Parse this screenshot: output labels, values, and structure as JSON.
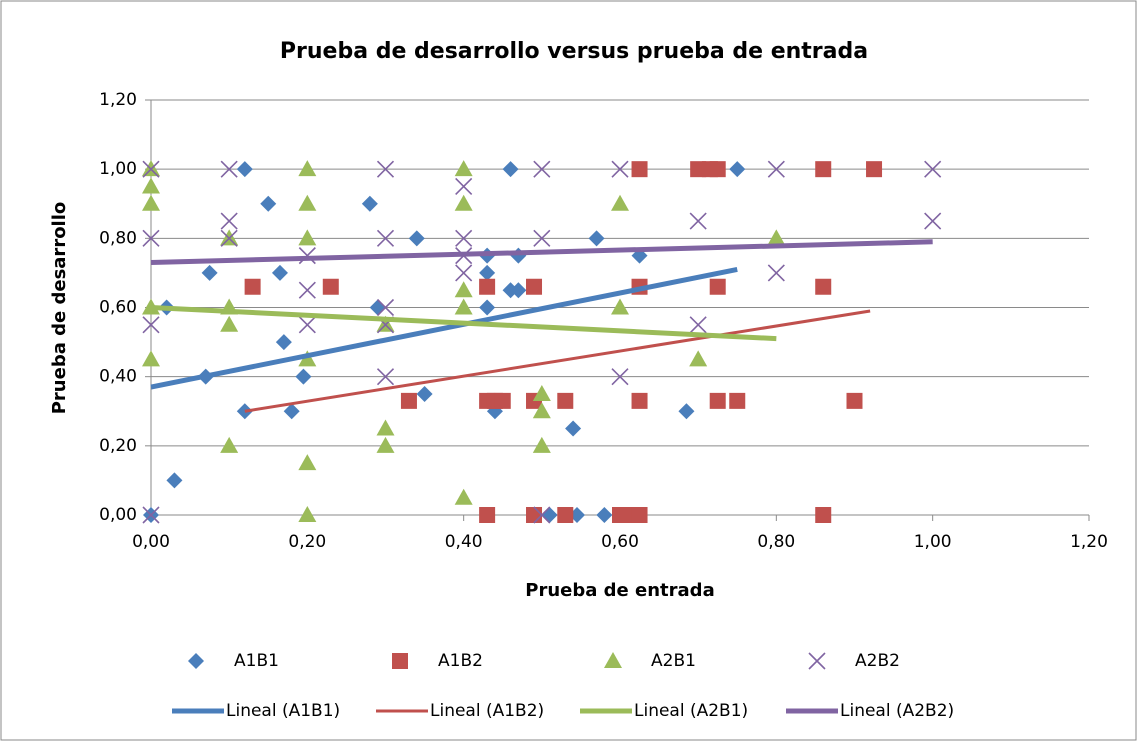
{
  "chart_data": {
    "type": "scatter",
    "title": "Prueba de desarrollo versus prueba de entrada",
    "x_label": "Prueba de entrada",
    "y_label": "Prueba de desarrollo",
    "xlim": [
      0,
      1.2
    ],
    "ylim": [
      0,
      1.2
    ],
    "xticks": [
      {
        "value": 0,
        "label": "0,00"
      },
      {
        "value": 0.2,
        "label": "0,20"
      },
      {
        "value": 0.4,
        "label": "0,40"
      },
      {
        "value": 0.6,
        "label": "0,60"
      },
      {
        "value": 0.8,
        "label": "0,80"
      },
      {
        "value": 1,
        "label": "1,00"
      },
      {
        "value": 1.2,
        "label": "1,20"
      }
    ],
    "yticks": [
      {
        "value": 0,
        "label": "0,00"
      },
      {
        "value": 0.2,
        "label": "0,20"
      },
      {
        "value": 0.4,
        "label": "0,40"
      },
      {
        "value": 0.6,
        "label": "0,60"
      },
      {
        "value": 0.8,
        "label": "0,80"
      },
      {
        "value": 1,
        "label": "1,00"
      },
      {
        "value": 1.2,
        "label": "1,20"
      }
    ],
    "grid": true,
    "legend": "bottom",
    "series": [
      {
        "name": "A1B1",
        "color": "#4a7ebb",
        "marker": "diamond",
        "x": [
          0,
          0.03,
          0.07,
          0.075,
          0.12,
          0.12,
          0.15,
          0.165,
          0.17,
          0.18,
          0.195,
          0.28,
          0.29,
          0.34,
          0.35,
          0.43,
          0.43,
          0.43,
          0.44,
          0.46,
          0.47,
          0.47,
          0.46,
          0.02,
          0.51,
          0.54,
          0.545,
          0.57,
          0.58,
          0.625,
          0.685,
          0.75
        ],
        "values": [
          0,
          0.1,
          0.4,
          0.7,
          0.3,
          1,
          0.9,
          0.7,
          0.5,
          0.3,
          0.4,
          0.9,
          0.6,
          0.8,
          0.35,
          0.75,
          0.7,
          0.6,
          0.3,
          0.65,
          0.65,
          0.75,
          1,
          0.6,
          0,
          0.25,
          0,
          0.8,
          0,
          0.75,
          0.3,
          1
        ]
      },
      {
        "name": "A1B2",
        "color": "#c0504d",
        "marker": "square",
        "x": [
          0.13,
          0.23,
          0.33,
          0.43,
          0.43,
          0.43,
          0.44,
          0.45,
          0.49,
          0.49,
          0.49,
          0.53,
          0.53,
          0.6,
          0.61,
          0.625,
          0.625,
          0.625,
          0.625,
          0.7,
          0.715,
          0.725,
          0.725,
          0.725,
          0.75,
          0.86,
          0.86,
          0.86,
          0.925,
          0.9
        ],
        "values": [
          0.66,
          0.66,
          0.33,
          0.66,
          0.33,
          0,
          0.33,
          0.33,
          0.66,
          0.33,
          0,
          0.33,
          0,
          0,
          0,
          0,
          1,
          0.66,
          0.33,
          1,
          1,
          1,
          0.66,
          0.33,
          0.33,
          1,
          0.66,
          0,
          1,
          0.33
        ]
      },
      {
        "name": "A2B1",
        "color": "#9bbb59",
        "marker": "triangle",
        "x": [
          0,
          0,
          0,
          0,
          0,
          0.1,
          0.1,
          0.1,
          0.1,
          0.2,
          0.2,
          0.2,
          0.2,
          0.2,
          0.2,
          0.3,
          0.3,
          0.3,
          0.4,
          0.4,
          0.4,
          0.4,
          0.4,
          0.5,
          0.5,
          0.5,
          0.6,
          0.6,
          0.7,
          0.8
        ],
        "values": [
          1,
          0.95,
          0.9,
          0.6,
          0.45,
          0.8,
          0.6,
          0.55,
          0.2,
          1,
          0.9,
          0.8,
          0.45,
          0.15,
          0,
          0.55,
          0.25,
          0.2,
          1,
          0.9,
          0.65,
          0.6,
          0.05,
          0.35,
          0.3,
          0.2,
          0.9,
          0.6,
          0.45,
          0.8
        ]
      },
      {
        "name": "A2B2",
        "color": "#8064a2",
        "marker": "x",
        "x": [
          0,
          0,
          0,
          0,
          0.1,
          0.1,
          0.1,
          0.2,
          0.2,
          0.2,
          0.3,
          0.3,
          0.3,
          0.3,
          0.3,
          0.4,
          0.4,
          0.4,
          0.4,
          0.5,
          0.5,
          0.5,
          0.6,
          0.6,
          0.7,
          0.7,
          0.8,
          0.8,
          1,
          1
        ],
        "values": [
          1,
          0.8,
          0.55,
          0,
          1,
          0.85,
          0.8,
          0.75,
          0.65,
          0.55,
          1,
          0.8,
          0.6,
          0.55,
          0.4,
          0.95,
          0.8,
          0.75,
          0.7,
          1,
          0.8,
          0,
          1,
          0.4,
          0.85,
          0.55,
          1,
          0.7,
          1,
          0.85
        ]
      },
      {
        "name": "Lineal (A1B1)",
        "color": "#4a7ebb",
        "marker": "line",
        "width": 5,
        "x": [
          0,
          0.75
        ],
        "values": [
          0.37,
          0.71
        ]
      },
      {
        "name": "Lineal (A1B2)",
        "color": "#c0504d",
        "marker": "line",
        "width": 3,
        "x": [
          0.12,
          0.92
        ],
        "values": [
          0.3,
          0.59
        ]
      },
      {
        "name": "Lineal (A2B1)",
        "color": "#9bbb59",
        "marker": "line",
        "width": 5,
        "x": [
          0,
          0.8
        ],
        "values": [
          0.6,
          0.51
        ]
      },
      {
        "name": "Lineal (A2B2)",
        "color": "#8064a2",
        "marker": "line",
        "width": 5,
        "x": [
          0,
          1
        ],
        "values": [
          0.73,
          0.79
        ]
      }
    ]
  }
}
